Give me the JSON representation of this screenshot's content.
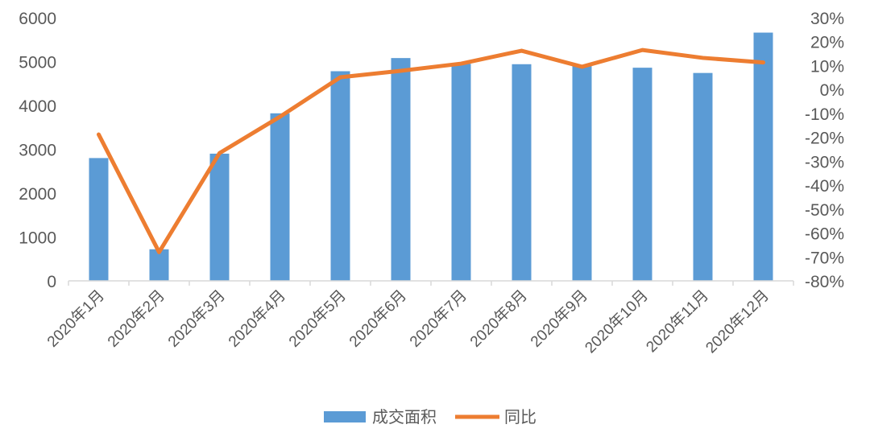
{
  "chart_data": {
    "type": "bar+line",
    "categories": [
      "2020年1月",
      "2020年2月",
      "2020年3月",
      "2020年4月",
      "2020年5月",
      "2020年6月",
      "2020年7月",
      "2020年8月",
      "2020年9月",
      "2020年10月",
      "2020年11月",
      "2020年12月"
    ],
    "series": [
      {
        "name": "成交面积",
        "type": "bar",
        "axis": "left",
        "color": "#5B9BD5",
        "values": [
          2800,
          720,
          2900,
          3820,
          4780,
          5080,
          4950,
          4940,
          4900,
          4860,
          4740,
          5660
        ]
      },
      {
        "name": "同比",
        "type": "line",
        "axis": "right",
        "color": "#ED7D31",
        "values": [
          -18.8,
          -68.0,
          -26.6,
          -11.4,
          5.1,
          7.8,
          10.8,
          16.2,
          9.5,
          16.5,
          13.2,
          11.3
        ]
      }
    ],
    "y_left": {
      "range": [
        0,
        6000
      ],
      "ticks": [
        "0",
        "1000",
        "2000",
        "3000",
        "4000",
        "5000",
        "6000"
      ]
    },
    "y_right": {
      "range": [
        -80,
        30
      ],
      "unit": "%",
      "ticks": [
        "-80%",
        "-70%",
        "-60%",
        "-50%",
        "-40%",
        "-30%",
        "-20%",
        "-10%",
        "0%",
        "10%",
        "20%",
        "30%"
      ]
    },
    "grid": false,
    "legend_position": "bottom"
  }
}
